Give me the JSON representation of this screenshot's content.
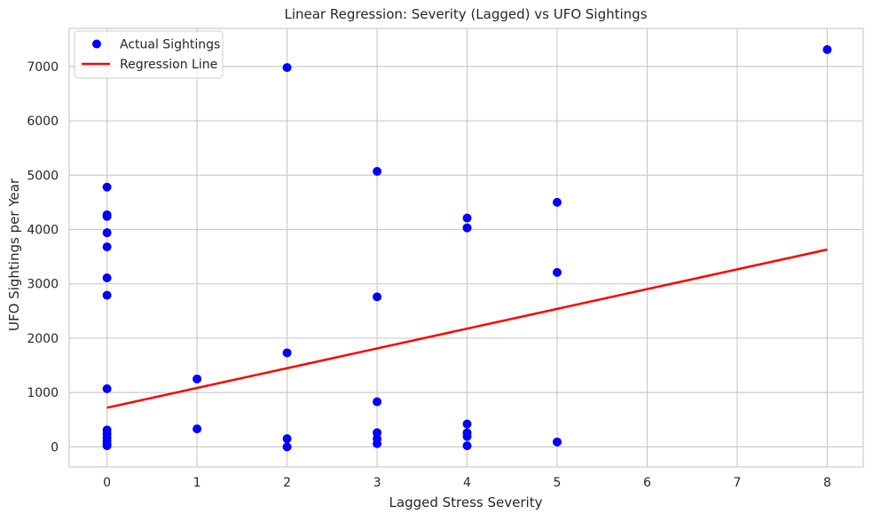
{
  "chart_data": {
    "type": "scatter",
    "title": "Linear Regression: Severity (Lagged) vs UFO Sightings",
    "xlabel": "Lagged Stress Severity",
    "ylabel": "UFO Sightings per Year",
    "xlim": [
      -0.42,
      8.4
    ],
    "ylim": [
      -370,
      7700
    ],
    "xticks": [
      0,
      1,
      2,
      3,
      4,
      5,
      6,
      7,
      8
    ],
    "yticks": [
      0,
      1000,
      2000,
      3000,
      4000,
      5000,
      6000,
      7000
    ],
    "grid": true,
    "legend_position": "top-left",
    "legend": {
      "scatter_label": "Actual Sightings",
      "line_label": "Regression Line"
    },
    "colors": {
      "scatter": "#0000ff",
      "line": "#ff0000",
      "grid": "#cccccc",
      "spine": "#cccccc"
    },
    "series": [
      {
        "name": "Actual Sightings",
        "type": "scatter",
        "points": [
          {
            "x": 0,
            "y": 4780
          },
          {
            "x": 0,
            "y": 4270
          },
          {
            "x": 0,
            "y": 4240
          },
          {
            "x": 0,
            "y": 3940
          },
          {
            "x": 0,
            "y": 3680
          },
          {
            "x": 0,
            "y": 3110
          },
          {
            "x": 0,
            "y": 2790
          },
          {
            "x": 0,
            "y": 1070
          },
          {
            "x": 0,
            "y": 310
          },
          {
            "x": 0,
            "y": 240
          },
          {
            "x": 0,
            "y": 170
          },
          {
            "x": 0,
            "y": 110
          },
          {
            "x": 0,
            "y": 50
          },
          {
            "x": 0,
            "y": 20
          },
          {
            "x": 1,
            "y": 1250
          },
          {
            "x": 1,
            "y": 330
          },
          {
            "x": 2,
            "y": 6980
          },
          {
            "x": 2,
            "y": 1730
          },
          {
            "x": 2,
            "y": 150
          },
          {
            "x": 2,
            "y": 0
          },
          {
            "x": 3,
            "y": 5070
          },
          {
            "x": 3,
            "y": 2760
          },
          {
            "x": 3,
            "y": 830
          },
          {
            "x": 3,
            "y": 260
          },
          {
            "x": 3,
            "y": 150
          },
          {
            "x": 3,
            "y": 60
          },
          {
            "x": 4,
            "y": 4210
          },
          {
            "x": 4,
            "y": 4030
          },
          {
            "x": 4,
            "y": 420
          },
          {
            "x": 4,
            "y": 260
          },
          {
            "x": 4,
            "y": 190
          },
          {
            "x": 4,
            "y": 20
          },
          {
            "x": 5,
            "y": 4500
          },
          {
            "x": 5,
            "y": 3210
          },
          {
            "x": 5,
            "y": 90
          },
          {
            "x": 8,
            "y": 7310
          }
        ]
      },
      {
        "name": "Regression Line",
        "type": "line",
        "points": [
          {
            "x": 0,
            "y": 720
          },
          {
            "x": 8,
            "y": 3630
          }
        ]
      }
    ]
  }
}
